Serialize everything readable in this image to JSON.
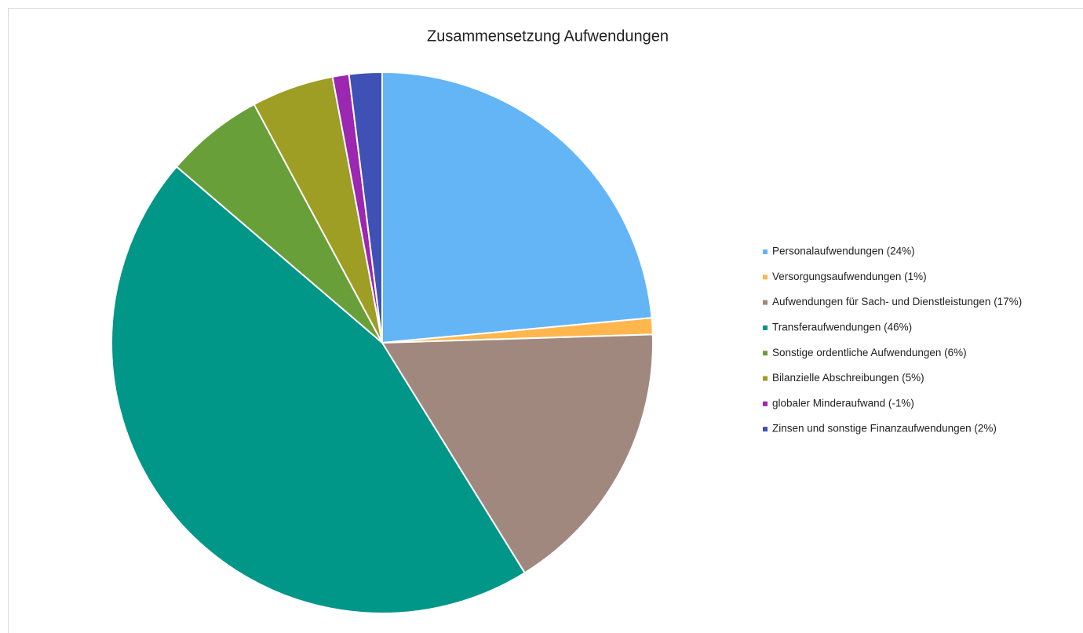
{
  "chart_data": {
    "type": "pie",
    "title": "Zusammensetzung  Aufwendungen",
    "categories": [
      "Personalaufwendungen (24%)",
      "Versorgungsaufwendungen (1%)",
      "Aufwendungen für Sach- und Dienstleistungen (17%)",
      "Transferaufwendungen (46%)",
      "Sonstige ordentliche Aufwendungen (6%)",
      "Bilanzielle Abschreibungen (5%)",
      "globaler Minderaufwand (-1%)",
      "Zinsen und sonstige Finanzaufwendungen (2%)"
    ],
    "values": [
      24,
      1,
      17,
      46,
      6,
      5,
      -1,
      2
    ],
    "colors": [
      "#64b5f6",
      "#ffb74d",
      "#a1887f",
      "#009688",
      "#689f38",
      "#9e9d24",
      "#9c27b0",
      "#3f51b5"
    ],
    "legend": "right"
  }
}
